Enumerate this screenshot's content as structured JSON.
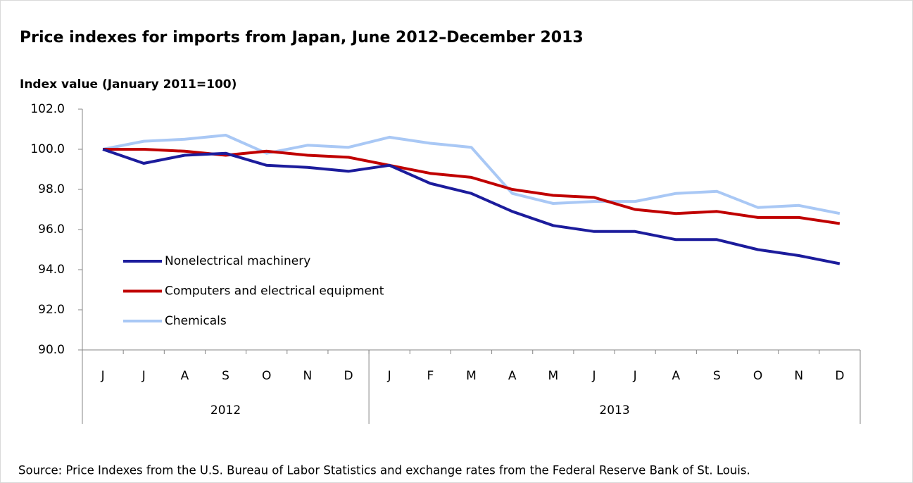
{
  "chart_data": {
    "type": "line",
    "title": "Price indexes for imports from Japan, June 2012–December 2013",
    "y_label": "Index value (January  2011=100)",
    "categories": [
      "J",
      "J",
      "A",
      "S",
      "O",
      "N",
      "D",
      "J",
      "F",
      "M",
      "A",
      "M",
      "J",
      "J",
      "A",
      "S",
      "O",
      "N",
      "D"
    ],
    "x_groups": [
      {
        "label": "2012",
        "count": 7
      },
      {
        "label": "2013",
        "count": 12
      }
    ],
    "series": [
      {
        "name": "Nonelectrical machinery",
        "color": "#1c1c9c",
        "values": [
          100.0,
          99.3,
          99.7,
          99.8,
          99.2,
          99.1,
          98.9,
          99.2,
          98.3,
          97.8,
          96.9,
          96.2,
          95.9,
          95.9,
          95.5,
          95.5,
          95.0,
          94.7,
          94.3
        ]
      },
      {
        "name": "Computers and electrical equipment",
        "color": "#c00000",
        "values": [
          100.0,
          100.0,
          99.9,
          99.7,
          99.9,
          99.7,
          99.6,
          99.2,
          98.8,
          98.6,
          98.0,
          97.7,
          97.6,
          97.0,
          96.8,
          96.9,
          96.6,
          96.6,
          96.3
        ]
      },
      {
        "name": "Chemicals",
        "color": "#a9c8f5",
        "values": [
          100.0,
          100.4,
          100.5,
          100.7,
          99.8,
          100.2,
          100.1,
          100.6,
          100.3,
          100.1,
          97.8,
          97.3,
          97.4,
          97.4,
          97.8,
          97.9,
          97.1,
          97.2,
          96.8
        ]
      }
    ],
    "ylim": [
      90,
      102
    ],
    "yticks": [
      {
        "value": 90,
        "label": "90.0"
      },
      {
        "value": 92,
        "label": "92.0"
      },
      {
        "value": 94,
        "label": "94.0"
      },
      {
        "value": 96,
        "label": "96.0"
      },
      {
        "value": 98,
        "label": "98.0"
      },
      {
        "value": 100,
        "label": "100.0"
      },
      {
        "value": 102,
        "label": "102.0"
      }
    ],
    "legend": "left",
    "source": "Source: Price Indexes from the U.S. Bureau of Labor Statistics and exchange rates from the Federal Reserve Bank of St. Louis."
  }
}
